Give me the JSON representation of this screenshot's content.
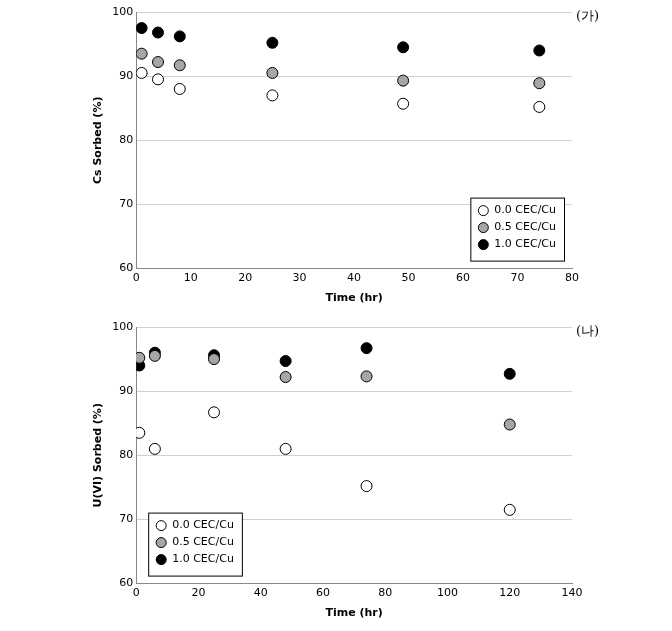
{
  "chart_data": [
    {
      "type": "scatter",
      "annotation": "(가)",
      "x_label": "Time (hr)",
      "y_label": "Cs Sorbed (%)",
      "xlim": [
        0,
        80
      ],
      "xticks": [
        0,
        10,
        20,
        30,
        40,
        50,
        60,
        70,
        80
      ],
      "ylim": [
        60,
        100
      ],
      "yticks": [
        60,
        70,
        80,
        90,
        100
      ],
      "grid": "y",
      "legend": "lower right",
      "marker": "circle",
      "series": [
        {
          "name": "0.0 CEC/Cu",
          "color": "#ffffff",
          "x": [
            1,
            4,
            8,
            25,
            49,
            74
          ],
          "values": [
            90.5,
            89.5,
            88,
            87,
            85.7,
            85.2
          ]
        },
        {
          "name": "0.5 CEC/Cu",
          "color": "#a6a6a6",
          "x": [
            1,
            4,
            8,
            25,
            49,
            74
          ],
          "values": [
            93.5,
            92.2,
            91.7,
            90.5,
            89.3,
            88.9
          ]
        },
        {
          "name": "1.0 CEC/Cu",
          "color": "#000000",
          "x": [
            1,
            4,
            8,
            25,
            49,
            74
          ],
          "values": [
            97.5,
            96.8,
            96.2,
            95.2,
            94.5,
            94
          ]
        }
      ]
    },
    {
      "type": "scatter",
      "annotation": "(나)",
      "x_label": "Time (hr)",
      "y_label": "U(VI) Sorbed (%)",
      "xlim": [
        0,
        140
      ],
      "xticks": [
        0,
        20,
        40,
        60,
        80,
        100,
        120,
        140
      ],
      "ylim": [
        60,
        100
      ],
      "yticks": [
        60,
        70,
        80,
        90,
        100
      ],
      "grid": "y",
      "legend": "lower left",
      "marker": "circle",
      "series": [
        {
          "name": "0.0 CEC/Cu",
          "color": "#ffffff",
          "x": [
            1,
            6,
            25,
            48,
            74,
            120
          ],
          "values": [
            83.5,
            81,
            86.7,
            81,
            75.2,
            71.5
          ]
        },
        {
          "name": "0.5 CEC/Cu",
          "color": "#a6a6a6",
          "x": [
            1,
            6,
            25,
            48,
            74,
            120
          ],
          "values": [
            95.2,
            95.5,
            95,
            92.2,
            92.3,
            84.8
          ]
        },
        {
          "name": "1.0 CEC/Cu",
          "color": "#000000",
          "x": [
            1,
            6,
            25,
            48,
            74,
            120
          ],
          "values": [
            94,
            96,
            95.6,
            94.7,
            96.7,
            92.7
          ]
        }
      ]
    }
  ]
}
